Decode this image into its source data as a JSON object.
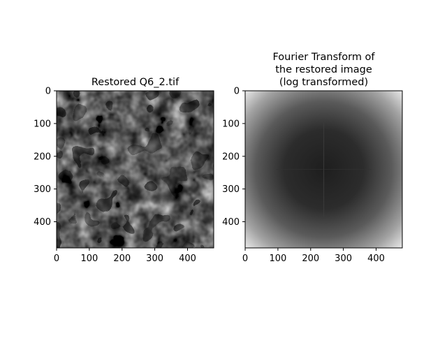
{
  "figure": {
    "panels": [
      {
        "title_lines": [
          "Restored Q6_2.tif"
        ],
        "image_description": "grayscale noisy restored image with blob-like bright/dark regions and dark contour-like lines",
        "x_ticks": [
          "0",
          "100",
          "200",
          "300",
          "400"
        ],
        "y_ticks": [
          "0",
          "100",
          "200",
          "300",
          "400"
        ],
        "axis_range": [
          0,
          480
        ]
      },
      {
        "title_lines": [
          "Fourier Transform of",
          "the restored image",
          "(log transformed)"
        ],
        "image_description": "log-magnitude Fourier spectrum: dark center with a faint vertical/horizontal line, brightening radially toward the corners",
        "x_ticks": [
          "0",
          "100",
          "200",
          "300",
          "400"
        ],
        "y_ticks": [
          "0",
          "100",
          "200",
          "300",
          "400"
        ],
        "axis_range": [
          0,
          480
        ]
      }
    ],
    "colors": {
      "background": "#ffffff",
      "axes": "#000000"
    }
  }
}
